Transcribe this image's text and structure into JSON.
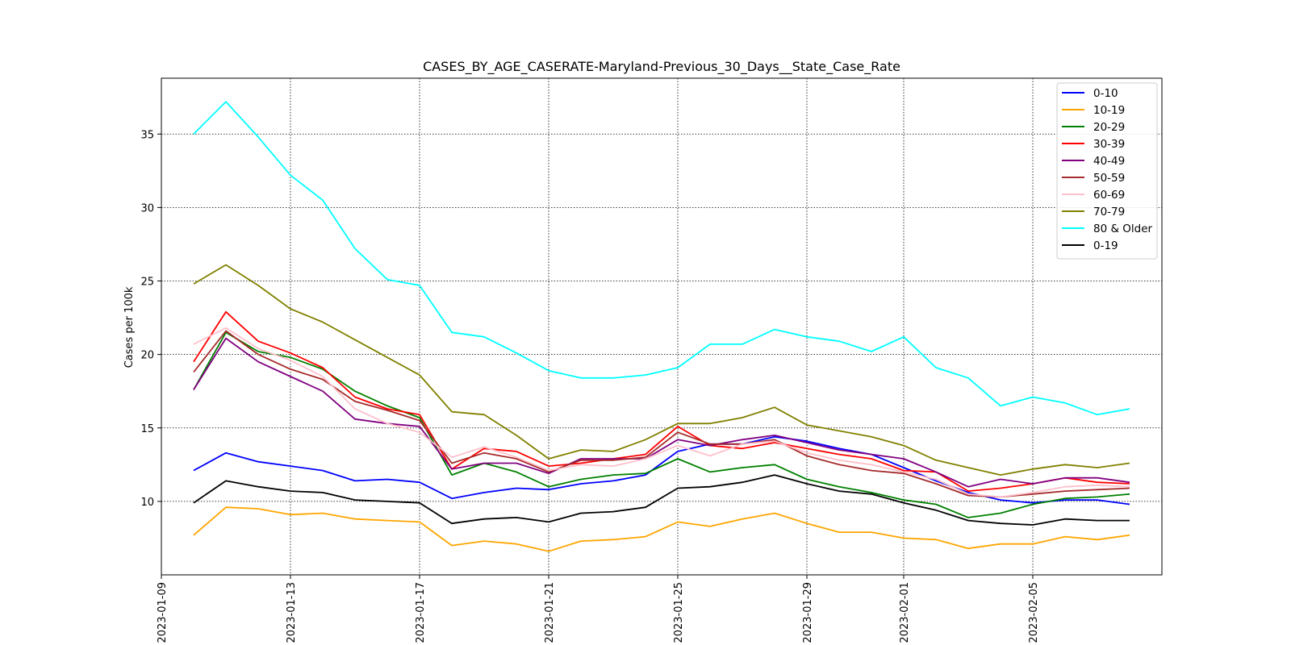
{
  "chart_data": {
    "type": "line",
    "title": "CASES_BY_AGE_CASERATE-Maryland-Previous_30_Days__State_Case_Rate",
    "xlabel": "",
    "ylabel": "Cases per 100k",
    "x": [
      "2023-01-09",
      "2023-01-10",
      "2023-01-11",
      "2023-01-12",
      "2023-01-13",
      "2023-01-14",
      "2023-01-15",
      "2023-01-16",
      "2023-01-17",
      "2023-01-18",
      "2023-01-19",
      "2023-01-20",
      "2023-01-21",
      "2023-01-22",
      "2023-01-23",
      "2023-01-24",
      "2023-01-25",
      "2023-01-26",
      "2023-01-27",
      "2023-01-28",
      "2023-01-29",
      "2023-01-30",
      "2023-01-31",
      "2023-02-01",
      "2023-02-02",
      "2023-02-03",
      "2023-02-04",
      "2023-02-05",
      "2023-02-06",
      "2023-02-07"
    ],
    "x_ticks": [
      "2023-01-09",
      "2023-01-13",
      "2023-01-17",
      "2023-01-21",
      "2023-01-25",
      "2023-01-29",
      "2023-02-01",
      "2023-02-05"
    ],
    "x_tick_dates": [
      "2023-01-08",
      "2023-01-12",
      "2023-01-16",
      "2023-01-20",
      "2023-01-24",
      "2023-01-28",
      "2023-01-31",
      "2023-02-04"
    ],
    "xlim": [
      "2023-01-08",
      "2023-02-08"
    ],
    "ylim": [
      5,
      38.8
    ],
    "y_ticks": [
      10,
      15,
      20,
      25,
      30,
      35
    ],
    "grid": true,
    "legend_position": "top-right",
    "series": [
      {
        "name": "0-10",
        "color": "#0000ff",
        "values": [
          12.1,
          13.3,
          12.7,
          12.4,
          12.1,
          11.4,
          11.5,
          11.3,
          10.2,
          10.6,
          10.9,
          10.8,
          11.2,
          11.4,
          11.8,
          13.4,
          13.9,
          13.9,
          14.4,
          14.1,
          13.6,
          13.2,
          12.3,
          11.4,
          10.6,
          10.1,
          9.9,
          10.1,
          10.1,
          9.8
        ]
      },
      {
        "name": "10-19",
        "color": "#ffa500",
        "values": [
          7.7,
          9.6,
          9.5,
          9.1,
          9.2,
          8.8,
          8.7,
          8.6,
          7.0,
          7.3,
          7.1,
          6.6,
          7.3,
          7.4,
          7.6,
          8.6,
          8.3,
          8.8,
          9.2,
          8.5,
          7.9,
          7.9,
          7.5,
          7.4,
          6.8,
          7.1,
          7.1,
          7.6,
          7.4,
          7.7
        ]
      },
      {
        "name": "20-29",
        "color": "#008000",
        "values": [
          17.6,
          21.5,
          20.2,
          19.8,
          19.0,
          17.5,
          16.5,
          15.7,
          11.8,
          12.6,
          12.0,
          11.0,
          11.5,
          11.8,
          11.9,
          12.9,
          12.0,
          12.3,
          12.5,
          11.5,
          11.0,
          10.6,
          10.1,
          9.8,
          8.9,
          9.2,
          9.8,
          10.2,
          10.3,
          10.5
        ]
      },
      {
        "name": "30-39",
        "color": "#ff0000",
        "values": [
          19.5,
          22.9,
          20.9,
          20.1,
          19.1,
          17.1,
          16.3,
          15.9,
          12.2,
          13.6,
          13.4,
          12.4,
          12.6,
          12.9,
          13.2,
          15.1,
          13.8,
          13.6,
          14.0,
          13.6,
          13.2,
          12.9,
          12.1,
          12.0,
          10.7,
          10.9,
          11.2,
          11.6,
          11.3,
          11.2
        ]
      },
      {
        "name": "40-49",
        "color": "#800080",
        "values": [
          17.6,
          21.1,
          19.5,
          18.5,
          17.5,
          15.6,
          15.3,
          15.1,
          12.2,
          12.6,
          12.6,
          11.9,
          12.9,
          12.9,
          12.9,
          14.2,
          13.8,
          14.2,
          14.5,
          14.0,
          13.5,
          13.2,
          12.9,
          12.0,
          11.0,
          11.5,
          11.2,
          11.6,
          11.6,
          11.3
        ]
      },
      {
        "name": "50-59",
        "color": "#a52a2a",
        "values": [
          18.8,
          21.6,
          20.0,
          19.0,
          18.3,
          16.8,
          16.2,
          15.5,
          12.6,
          13.3,
          12.9,
          12.0,
          12.8,
          12.8,
          13.0,
          14.7,
          13.9,
          13.9,
          14.2,
          13.1,
          12.5,
          12.1,
          11.9,
          11.2,
          10.4,
          10.3,
          10.5,
          10.7,
          10.8,
          10.9
        ]
      },
      {
        "name": "60-69",
        "color": "#ffc0cb",
        "values": [
          20.7,
          21.8,
          20.4,
          19.6,
          18.5,
          16.3,
          15.3,
          14.7,
          13.0,
          13.7,
          13.0,
          12.1,
          12.5,
          12.4,
          12.9,
          13.8,
          13.1,
          13.9,
          14.1,
          13.3,
          12.8,
          12.5,
          12.0,
          11.5,
          10.5,
          10.3,
          10.6,
          11.0,
          11.1,
          11.0
        ]
      },
      {
        "name": "70-79",
        "color": "#808000",
        "values": [
          24.8,
          26.1,
          24.7,
          23.1,
          22.2,
          21.0,
          19.8,
          18.6,
          16.1,
          15.9,
          14.5,
          12.9,
          13.5,
          13.4,
          14.2,
          15.3,
          15.3,
          15.7,
          16.4,
          15.2,
          14.8,
          14.4,
          13.8,
          12.8,
          12.3,
          11.8,
          12.2,
          12.5,
          12.3,
          12.6
        ]
      },
      {
        "name": "80 & Older",
        "color": "#00ffff",
        "values": [
          35.0,
          37.2,
          34.8,
          32.2,
          30.5,
          27.2,
          25.1,
          24.7,
          21.5,
          21.2,
          20.1,
          18.9,
          18.4,
          18.4,
          18.6,
          19.1,
          20.7,
          20.7,
          21.7,
          21.2,
          20.9,
          20.2,
          21.2,
          19.1,
          18.4,
          16.5,
          17.1,
          16.7,
          15.9,
          16.3
        ]
      },
      {
        "name": "0-19",
        "color": "#000000",
        "values": [
          9.9,
          11.4,
          11.0,
          10.7,
          10.6,
          10.1,
          10.0,
          9.9,
          8.5,
          8.8,
          8.9,
          8.6,
          9.2,
          9.3,
          9.6,
          10.9,
          11.0,
          11.3,
          11.8,
          11.2,
          10.7,
          10.5,
          9.9,
          9.4,
          8.7,
          8.5,
          8.4,
          8.8,
          8.7,
          8.7
        ]
      }
    ]
  }
}
